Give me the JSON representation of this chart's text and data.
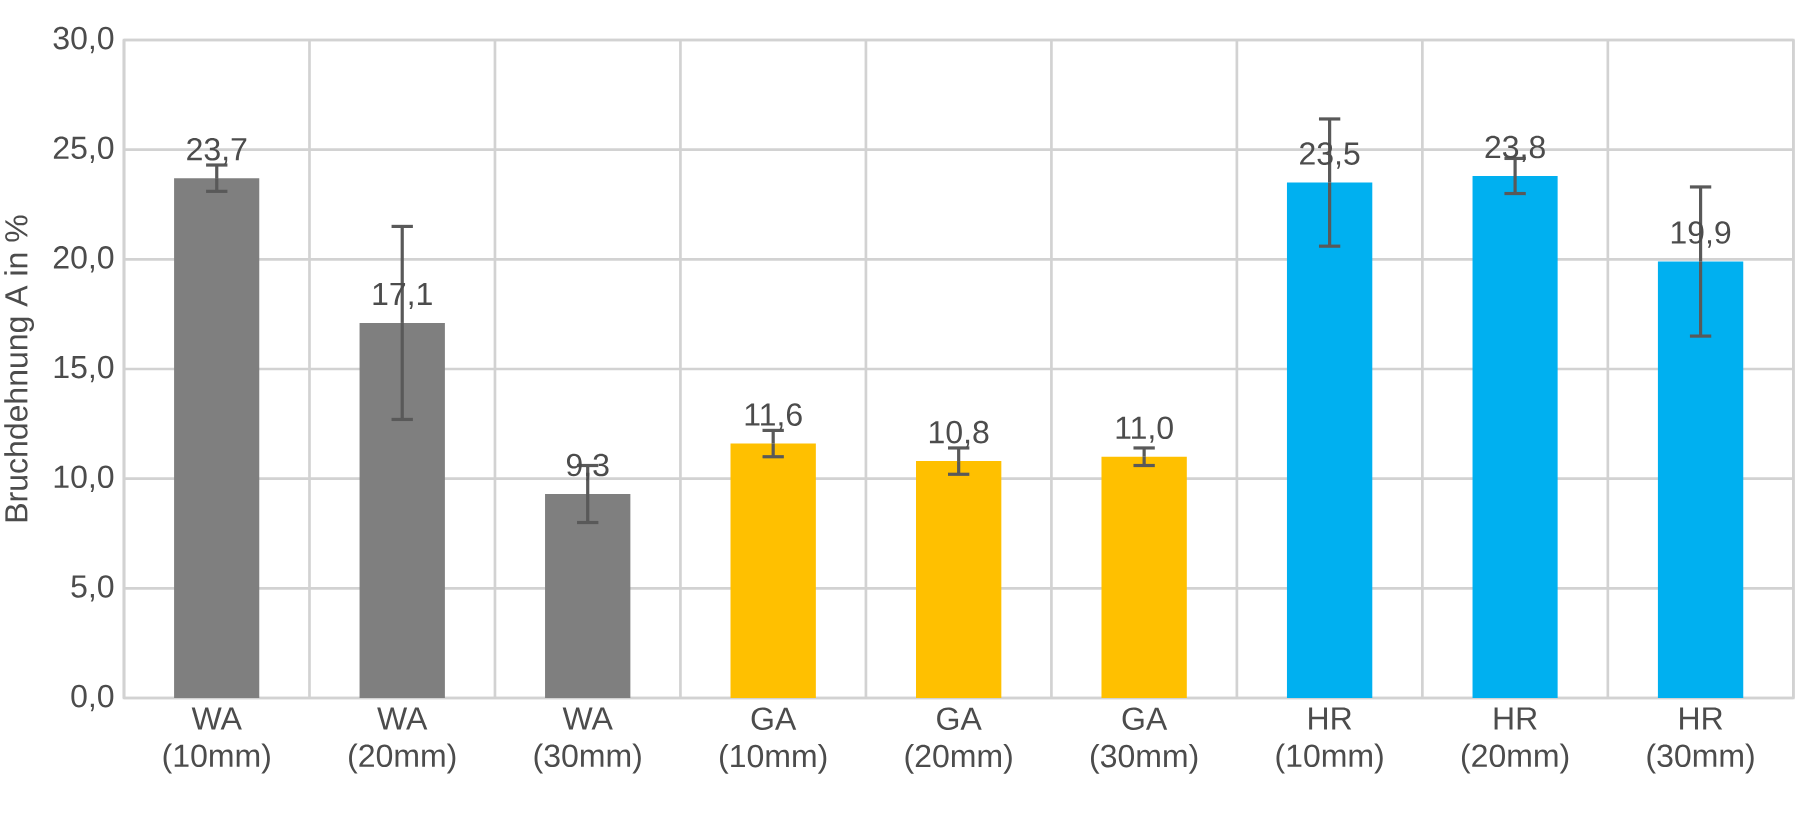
{
  "chart_data": {
    "type": "bar",
    "ylabel": "Bruchdehnung A in %",
    "categories": [
      "WA (10mm)",
      "WA (20mm)",
      "WA (30mm)",
      "GA (10mm)",
      "GA (20mm)",
      "GA (30mm)",
      "HR (10mm)",
      "HR (20mm)",
      "HR (30mm)"
    ],
    "values": [
      23.7,
      17.1,
      9.3,
      11.6,
      10.8,
      11.0,
      23.5,
      23.8,
      19.9
    ],
    "colors": [
      "#7f7f7f",
      "#7f7f7f",
      "#7f7f7f",
      "#ffc000",
      "#ffc000",
      "#ffc000",
      "#00b0f0",
      "#00b0f0",
      "#00b0f0"
    ],
    "errors": [
      0.6,
      4.4,
      1.3,
      0.6,
      0.6,
      0.4,
      2.9,
      0.8,
      3.4
    ],
    "value_labels": [
      "23,7",
      "17,1",
      "9,3",
      "11,6",
      "10,8",
      "11,0",
      "23,5",
      "23,8",
      "19,9"
    ],
    "ylim": [
      0,
      30
    ],
    "yticks": [
      {
        "value": 0,
        "label": "0,0"
      },
      {
        "value": 5,
        "label": "5,0"
      },
      {
        "value": 10,
        "label": "10,0"
      },
      {
        "value": 15,
        "label": "15,0"
      },
      {
        "value": 20,
        "label": "20,0"
      },
      {
        "value": 25,
        "label": "25,0"
      },
      {
        "value": 30,
        "label": "30,0"
      }
    ],
    "grid": true
  }
}
